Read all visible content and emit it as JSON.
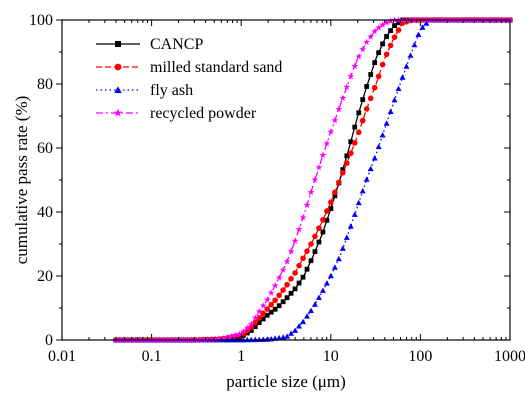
{
  "chart_data": {
    "type": "line",
    "xlabel": "particle size (μm)",
    "ylabel": "cumulative pass rate (%)",
    "xscale": "log",
    "xlim": [
      0.01,
      1000
    ],
    "ylim": [
      0,
      100
    ],
    "xticks": [
      0.01,
      0.1,
      1,
      10,
      100,
      1000
    ],
    "xtick_labels": [
      "0.01",
      "0.1",
      "1",
      "10",
      "100",
      "1000"
    ],
    "yticks": [
      0,
      20,
      40,
      60,
      80,
      100
    ],
    "ytick_labels": [
      "0",
      "20",
      "40",
      "60",
      "80",
      "100"
    ],
    "grid": false,
    "legend_position": "top-left",
    "series": [
      {
        "name": "CANCP",
        "color": "#000000",
        "line": "solid",
        "marker": "square",
        "x": [
          0.04,
          0.1,
          0.3,
          0.6,
          1.0,
          1.3,
          1.6,
          2,
          2.5,
          3.2,
          4,
          5,
          6.3,
          8,
          10,
          12.6,
          16,
          20,
          25,
          32,
          40,
          50,
          63,
          80,
          100,
          200,
          500,
          1000
        ],
        "y": [
          0,
          0,
          0,
          0.2,
          1,
          3,
          5.5,
          8,
          10,
          13,
          16,
          20,
          26,
          33,
          41,
          50,
          60,
          70,
          79,
          88,
          94,
          98,
          100,
          100,
          100,
          100,
          100,
          100
        ]
      },
      {
        "name": "milled standard sand",
        "color": "#ff0000",
        "line": "dashed",
        "marker": "circle",
        "x": [
          0.04,
          0.1,
          0.3,
          0.6,
          1.0,
          1.3,
          1.6,
          2,
          2.5,
          3.2,
          4,
          5,
          6.3,
          8,
          10,
          12.6,
          16,
          20,
          25,
          32,
          40,
          50,
          63,
          80,
          100,
          200,
          500,
          1000
        ],
        "y": [
          0,
          0,
          0,
          0.3,
          1.5,
          4,
          7,
          10,
          13,
          17,
          21,
          26,
          31,
          37,
          43,
          50,
          57,
          64,
          72,
          80,
          88,
          94,
          99,
          100,
          100,
          100,
          100,
          100
        ]
      },
      {
        "name": "fly ash",
        "color": "#0000ff",
        "line": "dotted",
        "marker": "triangle",
        "x": [
          0.04,
          0.1,
          0.3,
          1.0,
          2.0,
          3.2,
          4,
          5,
          6.3,
          8,
          10,
          12.6,
          16,
          20,
          25,
          32,
          40,
          50,
          63,
          80,
          100,
          126,
          200,
          500,
          1000
        ],
        "y": [
          0,
          0,
          0,
          0,
          0.2,
          1,
          3,
          6,
          10,
          15,
          20,
          26,
          34,
          42,
          50,
          58,
          66,
          74,
          82,
          90,
          97,
          100,
          100,
          100,
          100
        ]
      },
      {
        "name": "recycled powder",
        "color": "#ff00ff",
        "line": "dashdot",
        "marker": "star",
        "x": [
          0.04,
          0.1,
          0.3,
          0.6,
          1.0,
          1.3,
          1.6,
          2,
          2.5,
          3.2,
          4,
          5,
          6.3,
          8,
          10,
          12.6,
          16,
          20,
          25,
          32,
          40,
          50,
          63,
          80,
          100,
          200,
          500,
          1000
        ],
        "y": [
          0,
          0,
          0,
          0.3,
          2,
          5,
          9,
          13,
          18,
          24,
          31,
          39,
          48,
          57,
          65,
          73,
          81,
          88,
          93,
          97,
          99,
          100,
          100,
          100,
          100,
          100,
          100,
          100
        ]
      }
    ]
  }
}
